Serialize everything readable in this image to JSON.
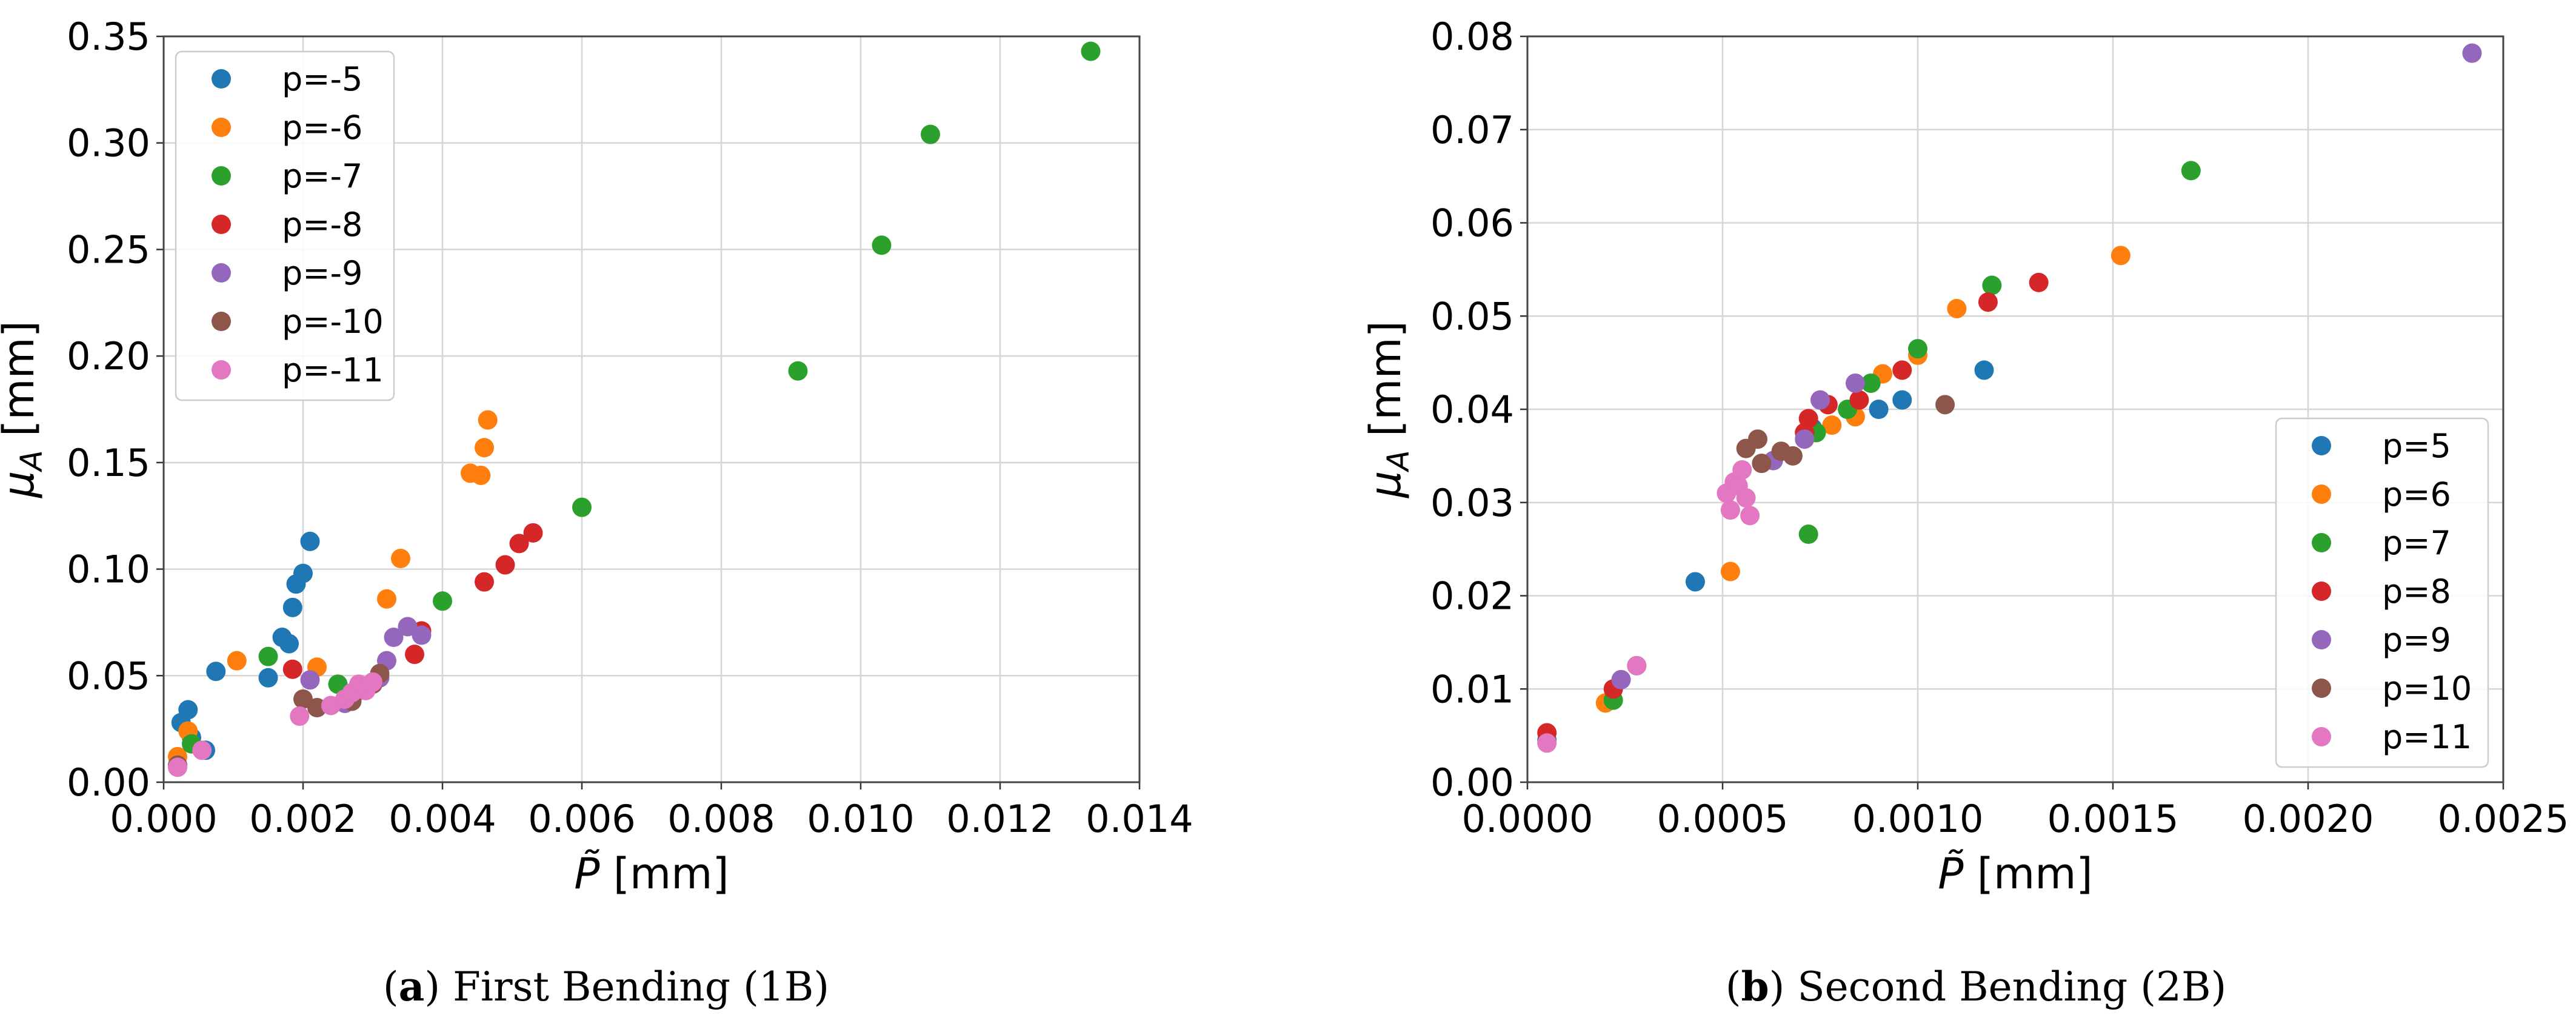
{
  "chart_data": [
    {
      "type": "scatter",
      "xlabel": "P̃ [mm]",
      "ylabel": "μ_A [mm]",
      "xlim": [
        0,
        0.014
      ],
      "ylim": [
        0,
        0.35
      ],
      "xticks": [
        "0.000",
        "0.002",
        "0.004",
        "0.006",
        "0.008",
        "0.010",
        "0.012",
        "0.014"
      ],
      "yticks": [
        "0.00",
        "0.05",
        "0.10",
        "0.15",
        "0.20",
        "0.25",
        "0.30",
        "0.35"
      ],
      "grid": true,
      "legend_position": "top-left",
      "caption_label": "a",
      "caption_text": "First Bending (1B)",
      "series": [
        {
          "name": "p=-5",
          "color": "#1f77b4",
          "points": [
            [
              0.00025,
              0.028
            ],
            [
              0.00035,
              0.034
            ],
            [
              0.0004,
              0.021
            ],
            [
              0.0006,
              0.015
            ],
            [
              0.00075,
              0.052
            ],
            [
              0.0015,
              0.049
            ],
            [
              0.0017,
              0.068
            ],
            [
              0.0018,
              0.065
            ],
            [
              0.00185,
              0.082
            ],
            [
              0.0019,
              0.093
            ],
            [
              0.002,
              0.098
            ],
            [
              0.0021,
              0.113
            ]
          ]
        },
        {
          "name": "p=-6",
          "color": "#ff7f0e",
          "points": [
            [
              0.0002,
              0.012
            ],
            [
              0.00035,
              0.024
            ],
            [
              0.00105,
              0.057
            ],
            [
              0.0022,
              0.054
            ],
            [
              0.0032,
              0.086
            ],
            [
              0.0034,
              0.105
            ],
            [
              0.0044,
              0.145
            ],
            [
              0.00455,
              0.144
            ],
            [
              0.0046,
              0.157
            ],
            [
              0.00465,
              0.17
            ]
          ]
        },
        {
          "name": "p=-7",
          "color": "#2ca02c",
          "points": [
            [
              0.0004,
              0.018
            ],
            [
              0.0015,
              0.059
            ],
            [
              0.0025,
              0.046
            ],
            [
              0.004,
              0.085
            ],
            [
              0.006,
              0.129
            ],
            [
              0.0091,
              0.193
            ],
            [
              0.0103,
              0.252
            ],
            [
              0.011,
              0.304
            ],
            [
              0.0133,
              0.343
            ]
          ]
        },
        {
          "name": "p=-8",
          "color": "#d62728",
          "points": [
            [
              0.00185,
              0.053
            ],
            [
              0.0036,
              0.06
            ],
            [
              0.0037,
              0.071
            ],
            [
              0.0046,
              0.094
            ],
            [
              0.0049,
              0.102
            ],
            [
              0.0051,
              0.112
            ],
            [
              0.0053,
              0.117
            ]
          ]
        },
        {
          "name": "p=-9",
          "color": "#9467bd",
          "points": [
            [
              0.0021,
              0.048
            ],
            [
              0.0026,
              0.037
            ],
            [
              0.0029,
              0.044
            ],
            [
              0.0031,
              0.049
            ],
            [
              0.0032,
              0.057
            ],
            [
              0.0033,
              0.068
            ],
            [
              0.0035,
              0.073
            ],
            [
              0.0037,
              0.069
            ]
          ]
        },
        {
          "name": "p=-10",
          "color": "#8c564b",
          "points": [
            [
              0.0002,
              0.008
            ],
            [
              0.002,
              0.039
            ],
            [
              0.0022,
              0.035
            ],
            [
              0.0027,
              0.038
            ],
            [
              0.0028,
              0.043
            ],
            [
              0.003,
              0.046
            ],
            [
              0.0031,
              0.051
            ]
          ]
        },
        {
          "name": "p=-11",
          "color": "#e377c2",
          "points": [
            [
              0.0002,
              0.007
            ],
            [
              0.00055,
              0.015
            ],
            [
              0.00195,
              0.031
            ],
            [
              0.0024,
              0.036
            ],
            [
              0.0026,
              0.039
            ],
            [
              0.0027,
              0.042
            ],
            [
              0.0028,
              0.046
            ],
            [
              0.0029,
              0.043
            ],
            [
              0.003,
              0.047
            ]
          ]
        }
      ]
    },
    {
      "type": "scatter",
      "xlabel": "P̃ [mm]",
      "ylabel": "μ_A [mm]",
      "xlim": [
        0,
        0.0025
      ],
      "ylim": [
        0,
        0.08
      ],
      "xticks": [
        "0.0000",
        "0.0005",
        "0.0010",
        "0.0015",
        "0.0020",
        "0.0025"
      ],
      "yticks": [
        "0.00",
        "0.01",
        "0.02",
        "0.03",
        "0.04",
        "0.05",
        "0.06",
        "0.07",
        "0.08"
      ],
      "grid": true,
      "legend_position": "bottom-right",
      "caption_label": "b",
      "caption_text": "Second Bending (2B)",
      "series": [
        {
          "name": "p=5",
          "color": "#1f77b4",
          "points": [
            [
              5e-05,
              0.0045
            ],
            [
              0.00043,
              0.0215
            ],
            [
              0.00073,
              0.038
            ],
            [
              0.0009,
              0.04
            ],
            [
              0.00096,
              0.041
            ],
            [
              0.00117,
              0.0442
            ]
          ]
        },
        {
          "name": "p=6",
          "color": "#ff7f0e",
          "points": [
            [
              0.0002,
              0.0085
            ],
            [
              0.00052,
              0.0226
            ],
            [
              0.00078,
              0.0383
            ],
            [
              0.00084,
              0.0392
            ],
            [
              0.00091,
              0.0438
            ],
            [
              0.001,
              0.0458
            ],
            [
              0.0011,
              0.0508
            ],
            [
              0.00152,
              0.0565
            ]
          ]
        },
        {
          "name": "p=7",
          "color": "#2ca02c",
          "points": [
            [
              0.00022,
              0.0088
            ],
            [
              0.00072,
              0.0266
            ],
            [
              0.00074,
              0.0375
            ],
            [
              0.00082,
              0.04
            ],
            [
              0.00088,
              0.0428
            ],
            [
              0.001,
              0.0465
            ],
            [
              0.00119,
              0.0533
            ],
            [
              0.0017,
              0.0656
            ]
          ]
        },
        {
          "name": "p=8",
          "color": "#d62728",
          "points": [
            [
              5e-05,
              0.0053
            ],
            [
              0.00022,
              0.01
            ],
            [
              0.00071,
              0.0375
            ],
            [
              0.00072,
              0.039
            ],
            [
              0.00077,
              0.0405
            ],
            [
              0.00085,
              0.041
            ],
            [
              0.00096,
              0.0442
            ],
            [
              0.00118,
              0.0515
            ],
            [
              0.00131,
              0.0536
            ]
          ]
        },
        {
          "name": "p=9",
          "color": "#9467bd",
          "points": [
            [
              0.00024,
              0.011
            ],
            [
              0.00063,
              0.0345
            ],
            [
              0.00071,
              0.0368
            ],
            [
              0.00075,
              0.041
            ],
            [
              0.00084,
              0.0428
            ],
            [
              0.00242,
              0.0782
            ]
          ]
        },
        {
          "name": "p=10",
          "color": "#8c564b",
          "points": [
            [
              0.00028,
              0.0125
            ],
            [
              0.00056,
              0.0358
            ],
            [
              0.00059,
              0.0368
            ],
            [
              0.0006,
              0.0342
            ],
            [
              0.00065,
              0.0355
            ],
            [
              0.00068,
              0.035
            ],
            [
              0.00107,
              0.0405
            ]
          ]
        },
        {
          "name": "p=11",
          "color": "#e377c2",
          "points": [
            [
              5e-05,
              0.0042
            ],
            [
              0.00028,
              0.0125
            ],
            [
              0.00051,
              0.031
            ],
            [
              0.00052,
              0.0292
            ],
            [
              0.00053,
              0.0322
            ],
            [
              0.00054,
              0.0318
            ],
            [
              0.00055,
              0.0335
            ],
            [
              0.00056,
              0.0305
            ],
            [
              0.00057,
              0.0286
            ]
          ]
        }
      ]
    }
  ]
}
